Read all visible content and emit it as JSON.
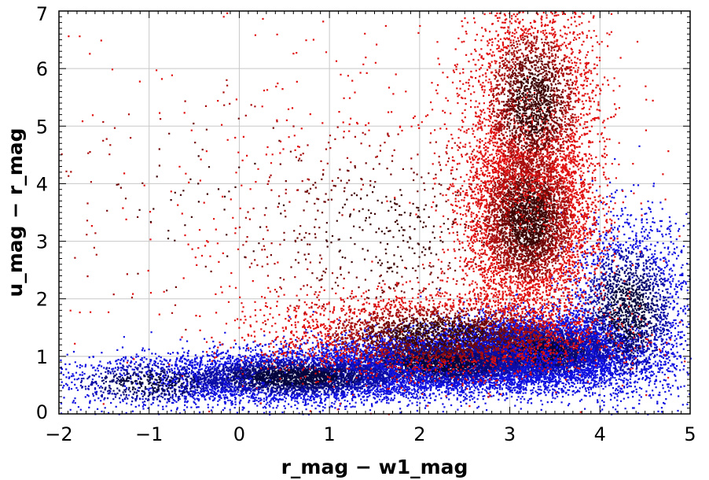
{
  "chart_data": {
    "type": "scatter",
    "xlabel": "r_mag − w1_mag",
    "ylabel": "u_mag − r_mag",
    "xlim": [
      -2,
      5
    ],
    "ylim": [
      0,
      7
    ],
    "xticks": [
      -2,
      -1,
      0,
      1,
      2,
      3,
      4,
      5
    ],
    "yticks": [
      0,
      1,
      2,
      3,
      4,
      5,
      6,
      7
    ],
    "xtick_labels": [
      "−2",
      "−1",
      "0",
      "1",
      "2",
      "3",
      "4",
      "5"
    ],
    "ytick_labels": [
      "0",
      "1",
      "2",
      "3",
      "4",
      "5",
      "6",
      "7"
    ],
    "grid": true,
    "legend": "none",
    "series": [
      {
        "color": "#1010e0",
        "dense_color": "#000000",
        "clusters": [
          {
            "center": [
              3.3,
              1.1
            ],
            "spread": [
              0.55,
              0.3
            ],
            "count": 14000
          },
          {
            "center": [
              2.2,
              0.9
            ],
            "spread": [
              0.7,
              0.25
            ],
            "count": 9000
          },
          {
            "center": [
              0.6,
              0.65
            ],
            "spread": [
              0.8,
              0.22
            ],
            "count": 4500
          },
          {
            "center": [
              -1.0,
              0.55
            ],
            "spread": [
              0.6,
              0.25
            ],
            "count": 900
          },
          {
            "center": [
              4.3,
              1.8
            ],
            "spread": [
              0.35,
              0.8
            ],
            "count": 2500
          }
        ]
      },
      {
        "color": "#e01010",
        "dense_color": "#000000",
        "clusters": [
          {
            "center": [
              3.2,
              3.4
            ],
            "spread": [
              0.35,
              0.8
            ],
            "count": 14000
          },
          {
            "center": [
              3.25,
              5.4
            ],
            "spread": [
              0.35,
              0.9
            ],
            "count": 3000
          },
          {
            "center": [
              2.2,
              1.4
            ],
            "spread": [
              0.9,
              0.35
            ],
            "count": 3000
          },
          {
            "center": [
              1.6,
              3.2
            ],
            "spread": [
              1.2,
              1.3
            ],
            "count": 900
          },
          {
            "center": [
              -0.3,
              3.6
            ],
            "spread": [
              1.4,
              1.7
            ],
            "count": 220
          }
        ]
      }
    ]
  }
}
